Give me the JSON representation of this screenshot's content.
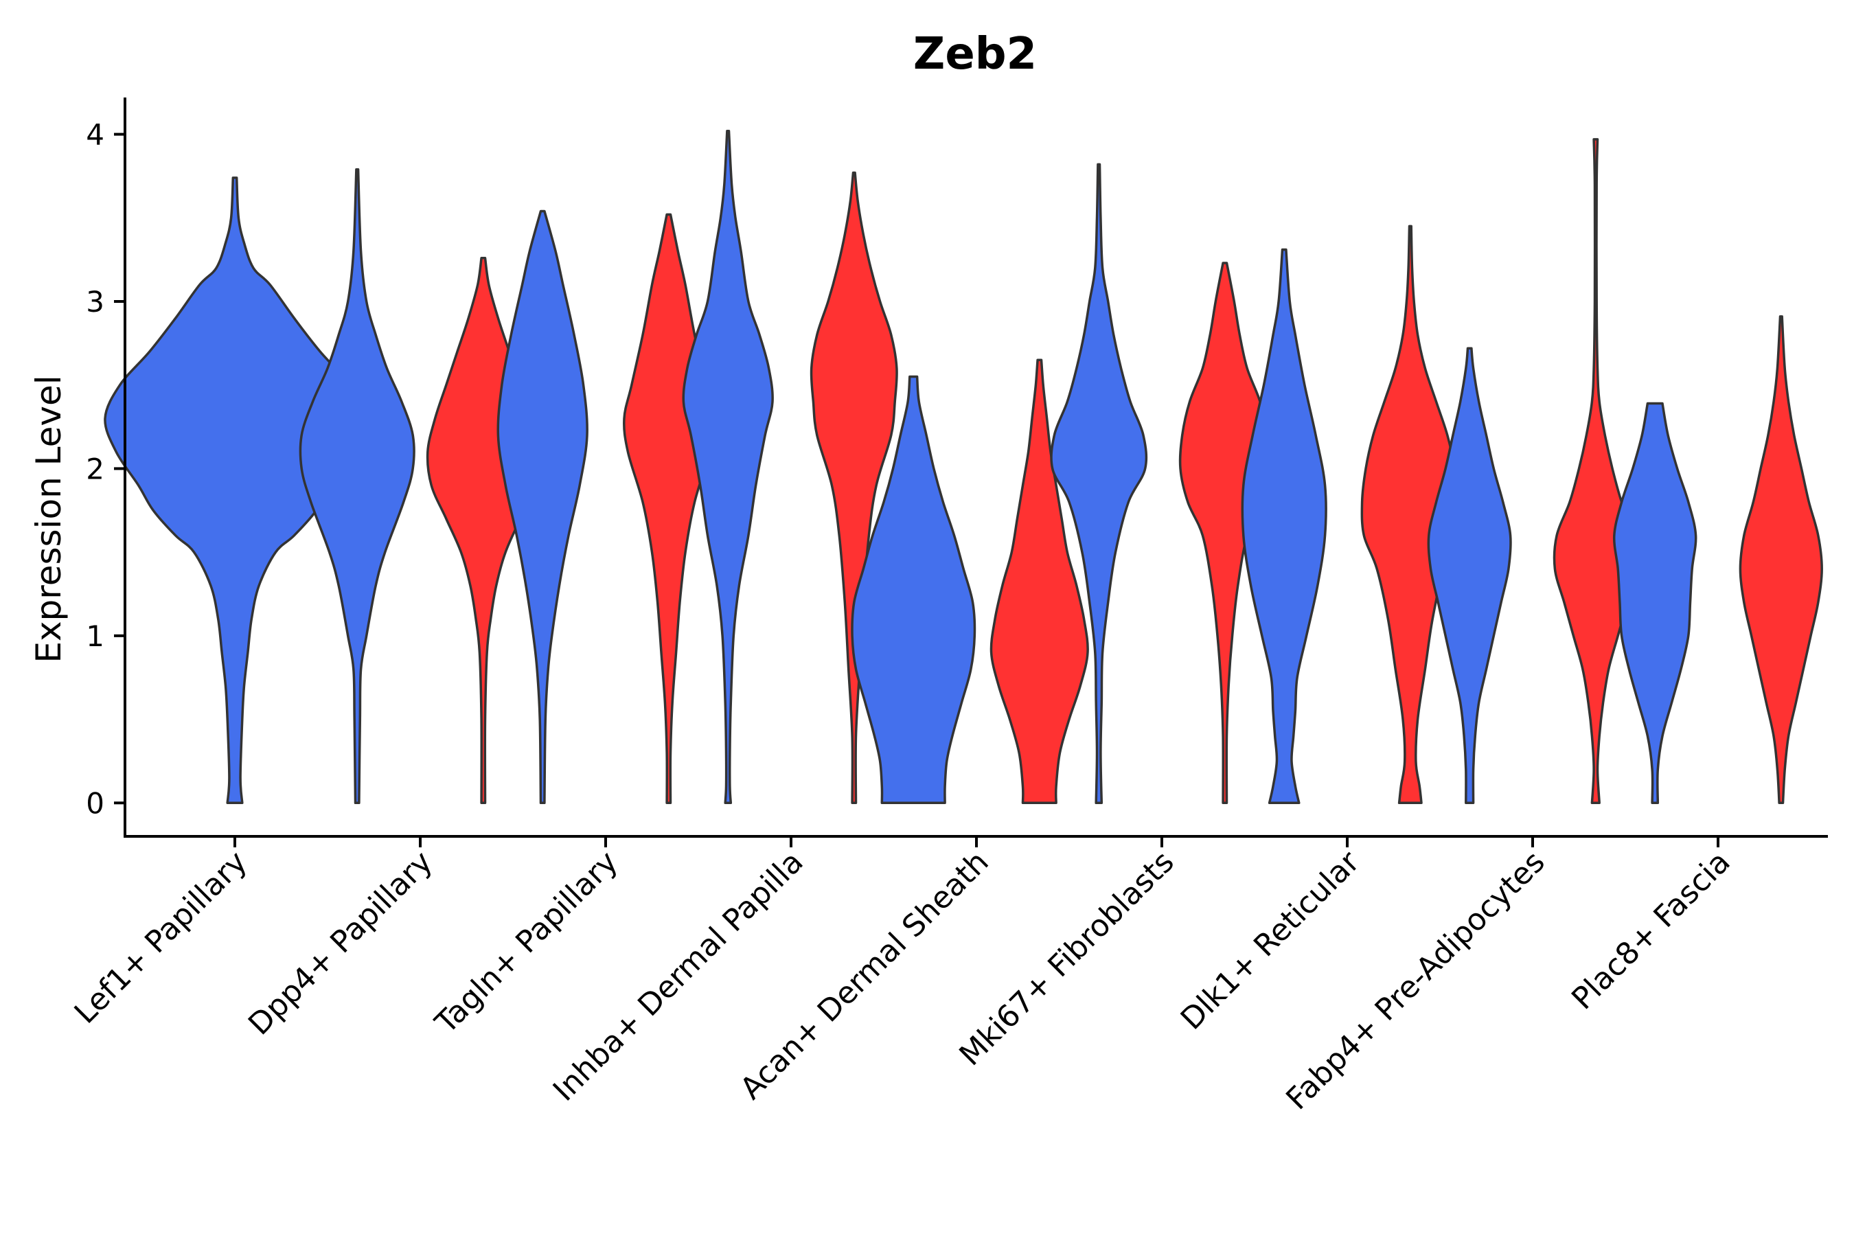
{
  "chart_data": {
    "type": "violin",
    "title": "Zeb2",
    "xlabel": "",
    "ylabel": "Expression Level",
    "ylim": [
      -0.2,
      4.22
    ],
    "yticks": [
      0,
      1,
      2,
      3,
      4
    ],
    "grid": false,
    "legend": "none",
    "colors": {
      "blue": "#4470ED",
      "red": "#FF3232",
      "outline": "#333333"
    },
    "categories": [
      "Lef1+ Papillary",
      "Dpp4+ Papillary",
      "Tagln+ Papillary",
      "Inhba+ Dermal Papilla",
      "Acan+ Dermal Sheath",
      "Mki67+ Fibroblasts",
      "Dlk1+ Reticular",
      "Fabp4+ Pre-Adipocytes",
      "Plac8+ Fascia"
    ],
    "violins": [
      {
        "category": "Lef1+ Papillary",
        "group": "blue",
        "offset": 0,
        "min": 0,
        "max": 3.74,
        "profile": [
          [
            0,
            0.04
          ],
          [
            0.15,
            0.03
          ],
          [
            0.5,
            0.04
          ],
          [
            0.7,
            0.05
          ],
          [
            0.9,
            0.07
          ],
          [
            1.1,
            0.09
          ],
          [
            1.3,
            0.13
          ],
          [
            1.5,
            0.22
          ],
          [
            1.6,
            0.32
          ],
          [
            1.75,
            0.44
          ],
          [
            1.9,
            0.52
          ],
          [
            2.1,
            0.64
          ],
          [
            2.3,
            0.7
          ],
          [
            2.5,
            0.62
          ],
          [
            2.7,
            0.46
          ],
          [
            2.9,
            0.32
          ],
          [
            3.1,
            0.19
          ],
          [
            3.2,
            0.1
          ],
          [
            3.35,
            0.05
          ],
          [
            3.5,
            0.02
          ],
          [
            3.74,
            0.01
          ]
        ]
      },
      {
        "category": "Dpp4+ Papillary",
        "group": "blue",
        "offset": -0.34,
        "min": 0,
        "max": 3.79,
        "profile": [
          [
            0,
            0.01
          ],
          [
            0.5,
            0.015
          ],
          [
            0.8,
            0.02
          ],
          [
            1.0,
            0.05
          ],
          [
            1.3,
            0.1
          ],
          [
            1.5,
            0.15
          ],
          [
            1.8,
            0.25
          ],
          [
            2.0,
            0.3
          ],
          [
            2.2,
            0.3
          ],
          [
            2.4,
            0.24
          ],
          [
            2.6,
            0.16
          ],
          [
            2.8,
            0.1
          ],
          [
            3.0,
            0.05
          ],
          [
            3.3,
            0.02
          ],
          [
            3.79,
            0.005
          ]
        ]
      },
      {
        "category": "Dpp4+ Papillary",
        "group": "red",
        "offset": 0.34,
        "min": 0,
        "max": 3.26,
        "profile": [
          [
            0,
            0.01
          ],
          [
            0.5,
            0.01
          ],
          [
            0.9,
            0.02
          ],
          [
            1.1,
            0.04
          ],
          [
            1.3,
            0.07
          ],
          [
            1.5,
            0.12
          ],
          [
            1.7,
            0.2
          ],
          [
            1.9,
            0.28
          ],
          [
            2.1,
            0.3
          ],
          [
            2.3,
            0.26
          ],
          [
            2.5,
            0.2
          ],
          [
            2.7,
            0.14
          ],
          [
            2.9,
            0.08
          ],
          [
            3.1,
            0.03
          ],
          [
            3.26,
            0.01
          ]
        ]
      },
      {
        "category": "Tagln+ Papillary",
        "group": "blue",
        "offset": -0.34,
        "min": 0,
        "max": 3.54,
        "profile": [
          [
            0,
            0.01
          ],
          [
            0.5,
            0.015
          ],
          [
            0.8,
            0.03
          ],
          [
            1.0,
            0.05
          ],
          [
            1.3,
            0.09
          ],
          [
            1.6,
            0.14
          ],
          [
            1.9,
            0.2
          ],
          [
            2.2,
            0.24
          ],
          [
            2.5,
            0.22
          ],
          [
            2.8,
            0.17
          ],
          [
            3.1,
            0.11
          ],
          [
            3.3,
            0.07
          ],
          [
            3.54,
            0.01
          ]
        ]
      },
      {
        "category": "Tagln+ Papillary",
        "group": "red",
        "offset": 0.34,
        "min": 0,
        "max": 3.52,
        "profile": [
          [
            0,
            0.01
          ],
          [
            0.3,
            0.01
          ],
          [
            0.6,
            0.02
          ],
          [
            0.9,
            0.04
          ],
          [
            1.2,
            0.06
          ],
          [
            1.5,
            0.09
          ],
          [
            1.8,
            0.14
          ],
          [
            2.1,
            0.22
          ],
          [
            2.3,
            0.24
          ],
          [
            2.5,
            0.2
          ],
          [
            2.8,
            0.14
          ],
          [
            3.1,
            0.09
          ],
          [
            3.3,
            0.05
          ],
          [
            3.52,
            0.01
          ]
        ]
      },
      {
        "category": "Inhba+ Dermal Papilla",
        "group": "blue",
        "offset": -0.34,
        "min": 0,
        "max": 4.02,
        "profile": [
          [
            0,
            0.015
          ],
          [
            0.1,
            0.01
          ],
          [
            0.3,
            0.01
          ],
          [
            0.6,
            0.015
          ],
          [
            1.0,
            0.03
          ],
          [
            1.3,
            0.06
          ],
          [
            1.6,
            0.11
          ],
          [
            1.9,
            0.15
          ],
          [
            2.2,
            0.2
          ],
          [
            2.4,
            0.24
          ],
          [
            2.6,
            0.22
          ],
          [
            2.8,
            0.17
          ],
          [
            3.0,
            0.11
          ],
          [
            3.3,
            0.07
          ],
          [
            3.5,
            0.04
          ],
          [
            3.7,
            0.02
          ],
          [
            4.02,
            0.005
          ]
        ]
      },
      {
        "category": "Inhba+ Dermal Papilla",
        "group": "red",
        "offset": 0.34,
        "min": 0,
        "max": 3.77,
        "profile": [
          [
            0,
            0.01
          ],
          [
            0.4,
            0.01
          ],
          [
            0.8,
            0.03
          ],
          [
            1.2,
            0.05
          ],
          [
            1.6,
            0.08
          ],
          [
            1.9,
            0.12
          ],
          [
            2.2,
            0.2
          ],
          [
            2.4,
            0.22
          ],
          [
            2.6,
            0.23
          ],
          [
            2.8,
            0.2
          ],
          [
            3.0,
            0.14
          ],
          [
            3.2,
            0.09
          ],
          [
            3.4,
            0.05
          ],
          [
            3.6,
            0.02
          ],
          [
            3.77,
            0.005
          ]
        ]
      },
      {
        "category": "Acan+ Dermal Sheath",
        "group": "blue",
        "offset": -0.34,
        "min": 0,
        "max": 2.55,
        "profile": [
          [
            0,
            0.17
          ],
          [
            0.1,
            0.17
          ],
          [
            0.25,
            0.18
          ],
          [
            0.4,
            0.21
          ],
          [
            0.6,
            0.26
          ],
          [
            0.8,
            0.31
          ],
          [
            1.0,
            0.33
          ],
          [
            1.2,
            0.32
          ],
          [
            1.4,
            0.27
          ],
          [
            1.6,
            0.22
          ],
          [
            1.8,
            0.16
          ],
          [
            2.0,
            0.11
          ],
          [
            2.2,
            0.07
          ],
          [
            2.4,
            0.03
          ],
          [
            2.55,
            0.02
          ]
        ]
      },
      {
        "category": "Acan+ Dermal Sheath",
        "group": "red",
        "offset": 0.34,
        "min": 0,
        "max": 2.65,
        "profile": [
          [
            0,
            0.09
          ],
          [
            0.1,
            0.09
          ],
          [
            0.3,
            0.11
          ],
          [
            0.5,
            0.16
          ],
          [
            0.7,
            0.22
          ],
          [
            0.9,
            0.26
          ],
          [
            1.1,
            0.24
          ],
          [
            1.3,
            0.2
          ],
          [
            1.5,
            0.15
          ],
          [
            1.7,
            0.12
          ],
          [
            1.9,
            0.09
          ],
          [
            2.1,
            0.06
          ],
          [
            2.3,
            0.04
          ],
          [
            2.5,
            0.02
          ],
          [
            2.65,
            0.01
          ]
        ]
      },
      {
        "category": "Mki67+ Fibroblasts",
        "group": "blue",
        "offset": -0.34,
        "min": 0,
        "max": 3.82,
        "profile": [
          [
            0,
            0.015
          ],
          [
            0.3,
            0.01
          ],
          [
            0.6,
            0.015
          ],
          [
            0.9,
            0.02
          ],
          [
            1.2,
            0.05
          ],
          [
            1.5,
            0.09
          ],
          [
            1.8,
            0.16
          ],
          [
            2.0,
            0.25
          ],
          [
            2.2,
            0.24
          ],
          [
            2.4,
            0.17
          ],
          [
            2.6,
            0.12
          ],
          [
            2.8,
            0.08
          ],
          [
            3.0,
            0.05
          ],
          [
            3.2,
            0.02
          ],
          [
            3.5,
            0.01
          ],
          [
            3.82,
            0.005
          ]
        ]
      },
      {
        "category": "Mki67+ Fibroblasts",
        "group": "red",
        "offset": 0.34,
        "min": 0,
        "max": 3.23,
        "profile": [
          [
            0,
            0.01
          ],
          [
            0.4,
            0.01
          ],
          [
            0.7,
            0.02
          ],
          [
            1.0,
            0.04
          ],
          [
            1.3,
            0.07
          ],
          [
            1.6,
            0.12
          ],
          [
            1.8,
            0.2
          ],
          [
            2.0,
            0.24
          ],
          [
            2.2,
            0.23
          ],
          [
            2.4,
            0.19
          ],
          [
            2.6,
            0.12
          ],
          [
            2.8,
            0.08
          ],
          [
            3.0,
            0.05
          ],
          [
            3.23,
            0.01
          ]
        ]
      },
      {
        "category": "Dlk1+ Reticular",
        "group": "blue",
        "offset": -0.34,
        "min": 0,
        "max": 3.31,
        "profile": [
          [
            0,
            0.08
          ],
          [
            0.1,
            0.06
          ],
          [
            0.25,
            0.04
          ],
          [
            0.4,
            0.05
          ],
          [
            0.55,
            0.06
          ],
          [
            0.75,
            0.07
          ],
          [
            1.0,
            0.12
          ],
          [
            1.3,
            0.18
          ],
          [
            1.6,
            0.22
          ],
          [
            1.9,
            0.22
          ],
          [
            2.2,
            0.17
          ],
          [
            2.5,
            0.11
          ],
          [
            2.8,
            0.06
          ],
          [
            3.0,
            0.03
          ],
          [
            3.31,
            0.01
          ]
        ]
      },
      {
        "category": "Dlk1+ Reticular",
        "group": "red",
        "offset": 0.34,
        "min": 0,
        "max": 3.45,
        "profile": [
          [
            0,
            0.06
          ],
          [
            0.1,
            0.05
          ],
          [
            0.25,
            0.03
          ],
          [
            0.5,
            0.04
          ],
          [
            0.8,
            0.08
          ],
          [
            1.1,
            0.12
          ],
          [
            1.4,
            0.18
          ],
          [
            1.6,
            0.25
          ],
          [
            1.8,
            0.26
          ],
          [
            2.0,
            0.24
          ],
          [
            2.2,
            0.2
          ],
          [
            2.4,
            0.14
          ],
          [
            2.6,
            0.08
          ],
          [
            2.8,
            0.04
          ],
          [
            3.0,
            0.02
          ],
          [
            3.2,
            0.01
          ],
          [
            3.45,
            0.005
          ]
        ]
      },
      {
        "category": "Fabp4+ Pre-Adipocytes",
        "group": "blue",
        "offset": -0.34,
        "min": 0,
        "max": 2.72,
        "profile": [
          [
            0,
            0.02
          ],
          [
            0.2,
            0.02
          ],
          [
            0.4,
            0.03
          ],
          [
            0.6,
            0.05
          ],
          [
            0.8,
            0.09
          ],
          [
            1.0,
            0.13
          ],
          [
            1.2,
            0.17
          ],
          [
            1.4,
            0.21
          ],
          [
            1.6,
            0.22
          ],
          [
            1.8,
            0.18
          ],
          [
            2.0,
            0.13
          ],
          [
            2.2,
            0.09
          ],
          [
            2.4,
            0.05
          ],
          [
            2.6,
            0.02
          ],
          [
            2.72,
            0.01
          ]
        ]
      },
      {
        "category": "Fabp4+ Pre-Adipocytes",
        "group": "red",
        "offset": 0.34,
        "min": 0,
        "max": 3.97,
        "profile": [
          [
            0,
            0.02
          ],
          [
            0.2,
            0.01
          ],
          [
            0.4,
            0.02
          ],
          [
            0.6,
            0.04
          ],
          [
            0.8,
            0.07
          ],
          [
            1.0,
            0.12
          ],
          [
            1.2,
            0.17
          ],
          [
            1.4,
            0.22
          ],
          [
            1.6,
            0.21
          ],
          [
            1.8,
            0.14
          ],
          [
            2.0,
            0.09
          ],
          [
            2.2,
            0.05
          ],
          [
            2.4,
            0.02
          ],
          [
            2.6,
            0.01
          ],
          [
            3.0,
            0.005
          ],
          [
            3.7,
            0.005
          ],
          [
            3.97,
            0.01
          ]
        ]
      },
      {
        "category": "Plac8+ Fascia",
        "group": "blue",
        "offset": -0.34,
        "min": 0,
        "max": 2.39,
        "profile": [
          [
            0,
            0.015
          ],
          [
            0.2,
            0.015
          ],
          [
            0.4,
            0.04
          ],
          [
            0.6,
            0.09
          ],
          [
            0.8,
            0.14
          ],
          [
            1.0,
            0.18
          ],
          [
            1.2,
            0.19
          ],
          [
            1.4,
            0.2
          ],
          [
            1.6,
            0.22
          ],
          [
            1.8,
            0.18
          ],
          [
            2.0,
            0.12
          ],
          [
            2.2,
            0.07
          ],
          [
            2.39,
            0.04
          ]
        ]
      },
      {
        "category": "Plac8+ Fascia",
        "group": "red",
        "offset": 0.34,
        "min": 0,
        "max": 2.91,
        "profile": [
          [
            0,
            0.01
          ],
          [
            0.2,
            0.02
          ],
          [
            0.4,
            0.04
          ],
          [
            0.6,
            0.08
          ],
          [
            0.8,
            0.12
          ],
          [
            1.0,
            0.16
          ],
          [
            1.2,
            0.2
          ],
          [
            1.4,
            0.22
          ],
          [
            1.6,
            0.2
          ],
          [
            1.8,
            0.15
          ],
          [
            2.0,
            0.11
          ],
          [
            2.2,
            0.07
          ],
          [
            2.4,
            0.04
          ],
          [
            2.6,
            0.02
          ],
          [
            2.91,
            0.005
          ]
        ]
      }
    ]
  }
}
